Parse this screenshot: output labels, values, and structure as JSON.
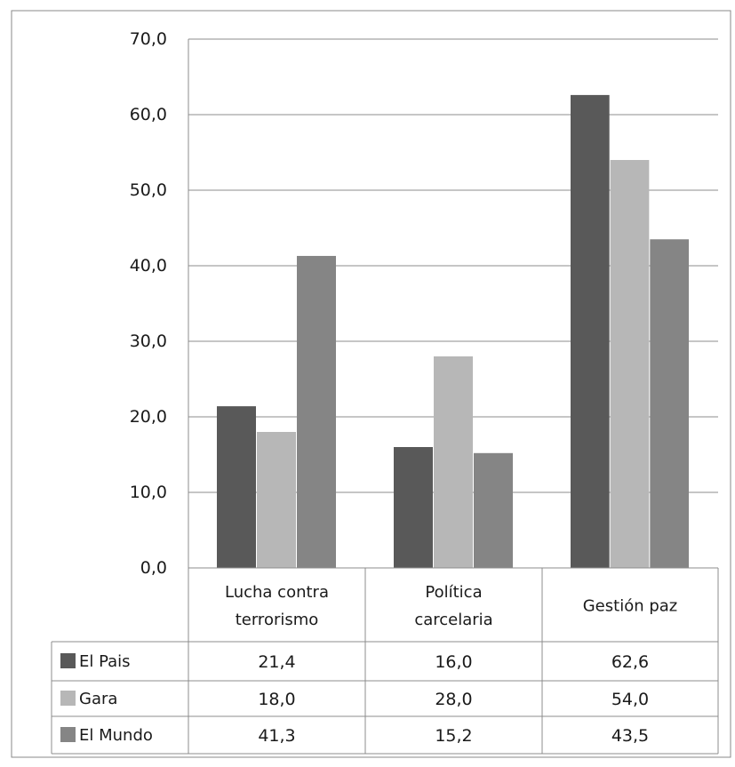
{
  "chart_data": {
    "type": "bar",
    "categories": [
      "Lucha contra terrorismo",
      "Política carcelaria",
      "Gestión paz"
    ],
    "category_lines": [
      [
        "Lucha contra",
        "terrorismo"
      ],
      [
        "Política",
        "carcelaria"
      ],
      [
        "Gestión paz"
      ]
    ],
    "series": [
      {
        "name": "El Pais",
        "color": "#595959",
        "values": [
          21.4,
          16.0,
          62.6
        ],
        "labels": [
          "21,4",
          "16,0",
          "62,6"
        ]
      },
      {
        "name": "Gara",
        "color": "#b7b7b7",
        "values": [
          18.0,
          28.0,
          54.0
        ],
        "labels": [
          "18,0",
          "28,0",
          "54,0"
        ]
      },
      {
        "name": "El Mundo",
        "color": "#858585",
        "values": [
          41.3,
          15.2,
          43.5
        ],
        "labels": [
          "41,3",
          "15,2",
          "43,5"
        ]
      }
    ],
    "y_ticks": [
      "0,0",
      "10,0",
      "20,0",
      "30,0",
      "40,0",
      "50,0",
      "60,0",
      "70,0"
    ],
    "ylim": [
      0,
      70
    ],
    "grid": true,
    "legend": "data-table"
  }
}
